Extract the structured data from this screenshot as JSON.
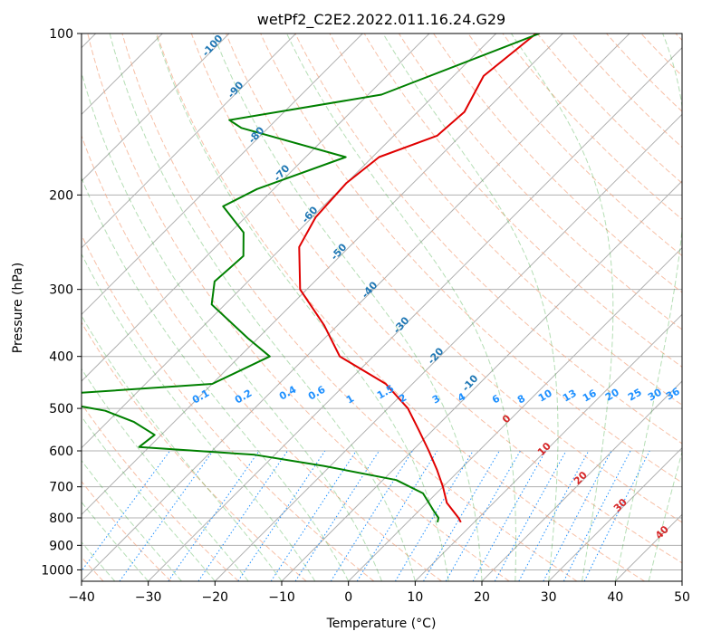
{
  "chart_data": {
    "type": "line",
    "title": "wetPf2_C2E2.2022.011.16.24.G29",
    "xlabel": "Temperature (°C)",
    "ylabel": "Pressure (hPa)",
    "xlim": [
      -40,
      50
    ],
    "ylim": [
      1050,
      100
    ],
    "y_scale": "log",
    "grid": true,
    "x_ticks": [
      -40,
      -30,
      -20,
      -10,
      0,
      10,
      20,
      30,
      40,
      50
    ],
    "y_ticks": [
      100,
      200,
      300,
      400,
      500,
      600,
      700,
      800,
      900,
      1000
    ],
    "skew_lines": {
      "color": "#b0b0b0"
    },
    "dry_adiabats": {
      "color": "#f4a582",
      "labels": [
        "0",
        "10",
        "20",
        "30",
        "40"
      ]
    },
    "moist_adiabats": {
      "color": "#1f77b4",
      "labels": [
        "-100",
        "-90",
        "-80",
        "-70",
        "-60",
        "-50",
        "-40",
        "-30",
        "-20",
        "-10"
      ]
    },
    "mixing_ratio_lines": {
      "color": "#1e90ff",
      "labels": [
        "0.1",
        "0.2",
        "0.4",
        "0.6",
        "1",
        "1.5",
        "2",
        "3",
        "4",
        "6",
        "8",
        "10",
        "13",
        "16",
        "20",
        "25",
        "30",
        "36"
      ]
    },
    "series": [
      {
        "color": "#e00000",
        "points": [
          [
            -54.0,
            100
          ],
          [
            -55.5,
            120
          ],
          [
            -53.0,
            140
          ],
          [
            -53.5,
            155
          ],
          [
            -59.0,
            170
          ],
          [
            -60.0,
            190
          ],
          [
            -59.5,
            220
          ],
          [
            -57.5,
            250
          ],
          [
            -51.0,
            300
          ],
          [
            -42.0,
            350
          ],
          [
            -35.0,
            400
          ],
          [
            -24.0,
            450
          ],
          [
            -17.0,
            500
          ],
          [
            -12.0,
            550
          ],
          [
            -7.5,
            600
          ],
          [
            -3.5,
            650
          ],
          [
            0.0,
            700
          ],
          [
            3.0,
            750
          ],
          [
            7.0,
            800
          ],
          [
            8.0,
            815
          ]
        ]
      },
      {
        "color": "#008000",
        "points": [
          [
            -53.5,
            100
          ],
          [
            -68.0,
            130
          ],
          [
            -87.0,
            145
          ],
          [
            -84.0,
            150
          ],
          [
            -64.0,
            170
          ],
          [
            -72.5,
            195
          ],
          [
            -75.0,
            210
          ],
          [
            -68.0,
            235
          ],
          [
            -64.5,
            260
          ],
          [
            -65.0,
            290
          ],
          [
            -62.0,
            320
          ],
          [
            -51.5,
            370
          ],
          [
            -45.5,
            400
          ],
          [
            -50.0,
            450
          ],
          [
            -76.0,
            475
          ],
          [
            -62.0,
            505
          ],
          [
            -56.0,
            530
          ],
          [
            -51.0,
            560
          ],
          [
            -51.5,
            590
          ],
          [
            -33.0,
            610
          ],
          [
            -21.0,
            640
          ],
          [
            -8.0,
            680
          ],
          [
            -2.0,
            720
          ],
          [
            2.5,
            780
          ],
          [
            4.0,
            800
          ],
          [
            4.5,
            815
          ]
        ]
      }
    ]
  }
}
